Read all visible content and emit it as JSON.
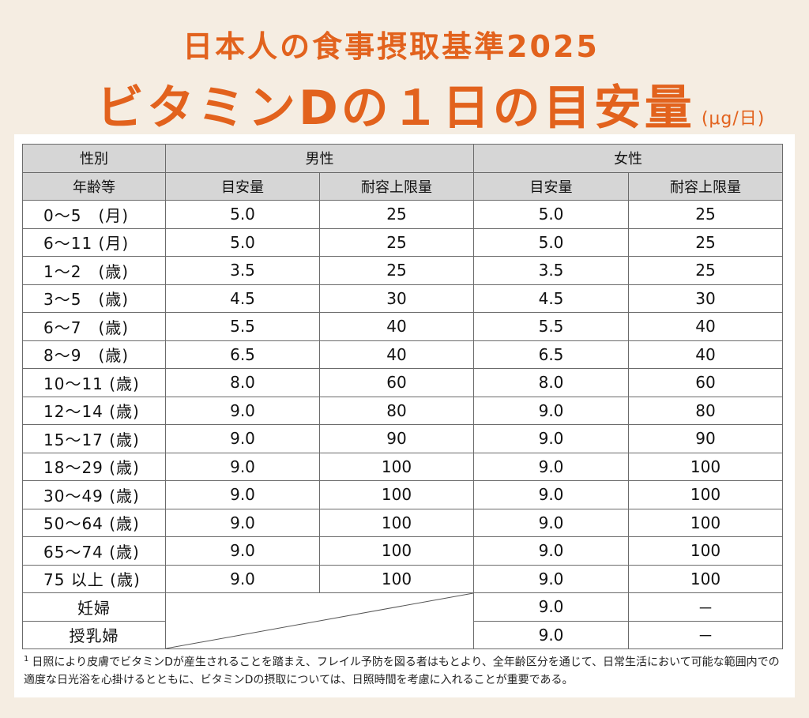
{
  "title": {
    "line1": "日本人の食事摂取基準2025",
    "line2": "ビタミンDの１日の目安量",
    "unit": "(μg/日)"
  },
  "table": {
    "header": {
      "sex_label": "性別",
      "age_label": "年齢等",
      "male": "男性",
      "female": "女性",
      "ai": "目安量",
      "ul": "耐容上限量"
    },
    "rows": [
      {
        "age": "0～5　(月)",
        "m_ai": "5.0",
        "m_ul": "25",
        "f_ai": "5.0",
        "f_ul": "25"
      },
      {
        "age": "6～11 (月)",
        "m_ai": "5.0",
        "m_ul": "25",
        "f_ai": "5.0",
        "f_ul": "25"
      },
      {
        "age": "1～2　(歳)",
        "m_ai": "3.5",
        "m_ul": "25",
        "f_ai": "3.5",
        "f_ul": "25"
      },
      {
        "age": "3～5　(歳)",
        "m_ai": "4.5",
        "m_ul": "30",
        "f_ai": "4.5",
        "f_ul": "30"
      },
      {
        "age": "6～7　(歳)",
        "m_ai": "5.5",
        "m_ul": "40",
        "f_ai": "5.5",
        "f_ul": "40"
      },
      {
        "age": "8～9　(歳)",
        "m_ai": "6.5",
        "m_ul": "40",
        "f_ai": "6.5",
        "f_ul": "40"
      },
      {
        "age": "10～11 (歳)",
        "m_ai": "8.0",
        "m_ul": "60",
        "f_ai": "8.0",
        "f_ul": "60"
      },
      {
        "age": "12～14 (歳)",
        "m_ai": "9.0",
        "m_ul": "80",
        "f_ai": "9.0",
        "f_ul": "80"
      },
      {
        "age": "15～17 (歳)",
        "m_ai": "9.0",
        "m_ul": "90",
        "f_ai": "9.0",
        "f_ul": "90"
      },
      {
        "age": "18～29 (歳)",
        "m_ai": "9.0",
        "m_ul": "100",
        "f_ai": "9.0",
        "f_ul": "100"
      },
      {
        "age": "30～49 (歳)",
        "m_ai": "9.0",
        "m_ul": "100",
        "f_ai": "9.0",
        "f_ul": "100"
      },
      {
        "age": "50～64 (歳)",
        "m_ai": "9.0",
        "m_ul": "100",
        "f_ai": "9.0",
        "f_ul": "100"
      },
      {
        "age": "65～74 (歳)",
        "m_ai": "9.0",
        "m_ul": "100",
        "f_ai": "9.0",
        "f_ul": "100"
      },
      {
        "age": "75 以上 (歳)",
        "m_ai": "9.0",
        "m_ul": "100",
        "f_ai": "9.0",
        "f_ul": "100"
      }
    ],
    "special_rows": [
      {
        "label": "妊婦",
        "f_ai": "9.0",
        "f_ul": "－"
      },
      {
        "label": "授乳婦",
        "f_ai": "9.0",
        "f_ul": "－"
      }
    ]
  },
  "footnote": {
    "marker": "1",
    "text": "日照により皮膚でビタミンDが産生されることを踏まえ、フレイル予防を図る者はもとより、全年齢区分を通じて、日常生活において可能な範囲内での適度な日光浴を心掛けるとともに、ビタミンDの摂取については、日照時間を考慮に入れることが重要である。"
  },
  "colors": {
    "accent": "#e2621d",
    "background": "#f5ede2",
    "header_fill": "#d6d6d6"
  }
}
